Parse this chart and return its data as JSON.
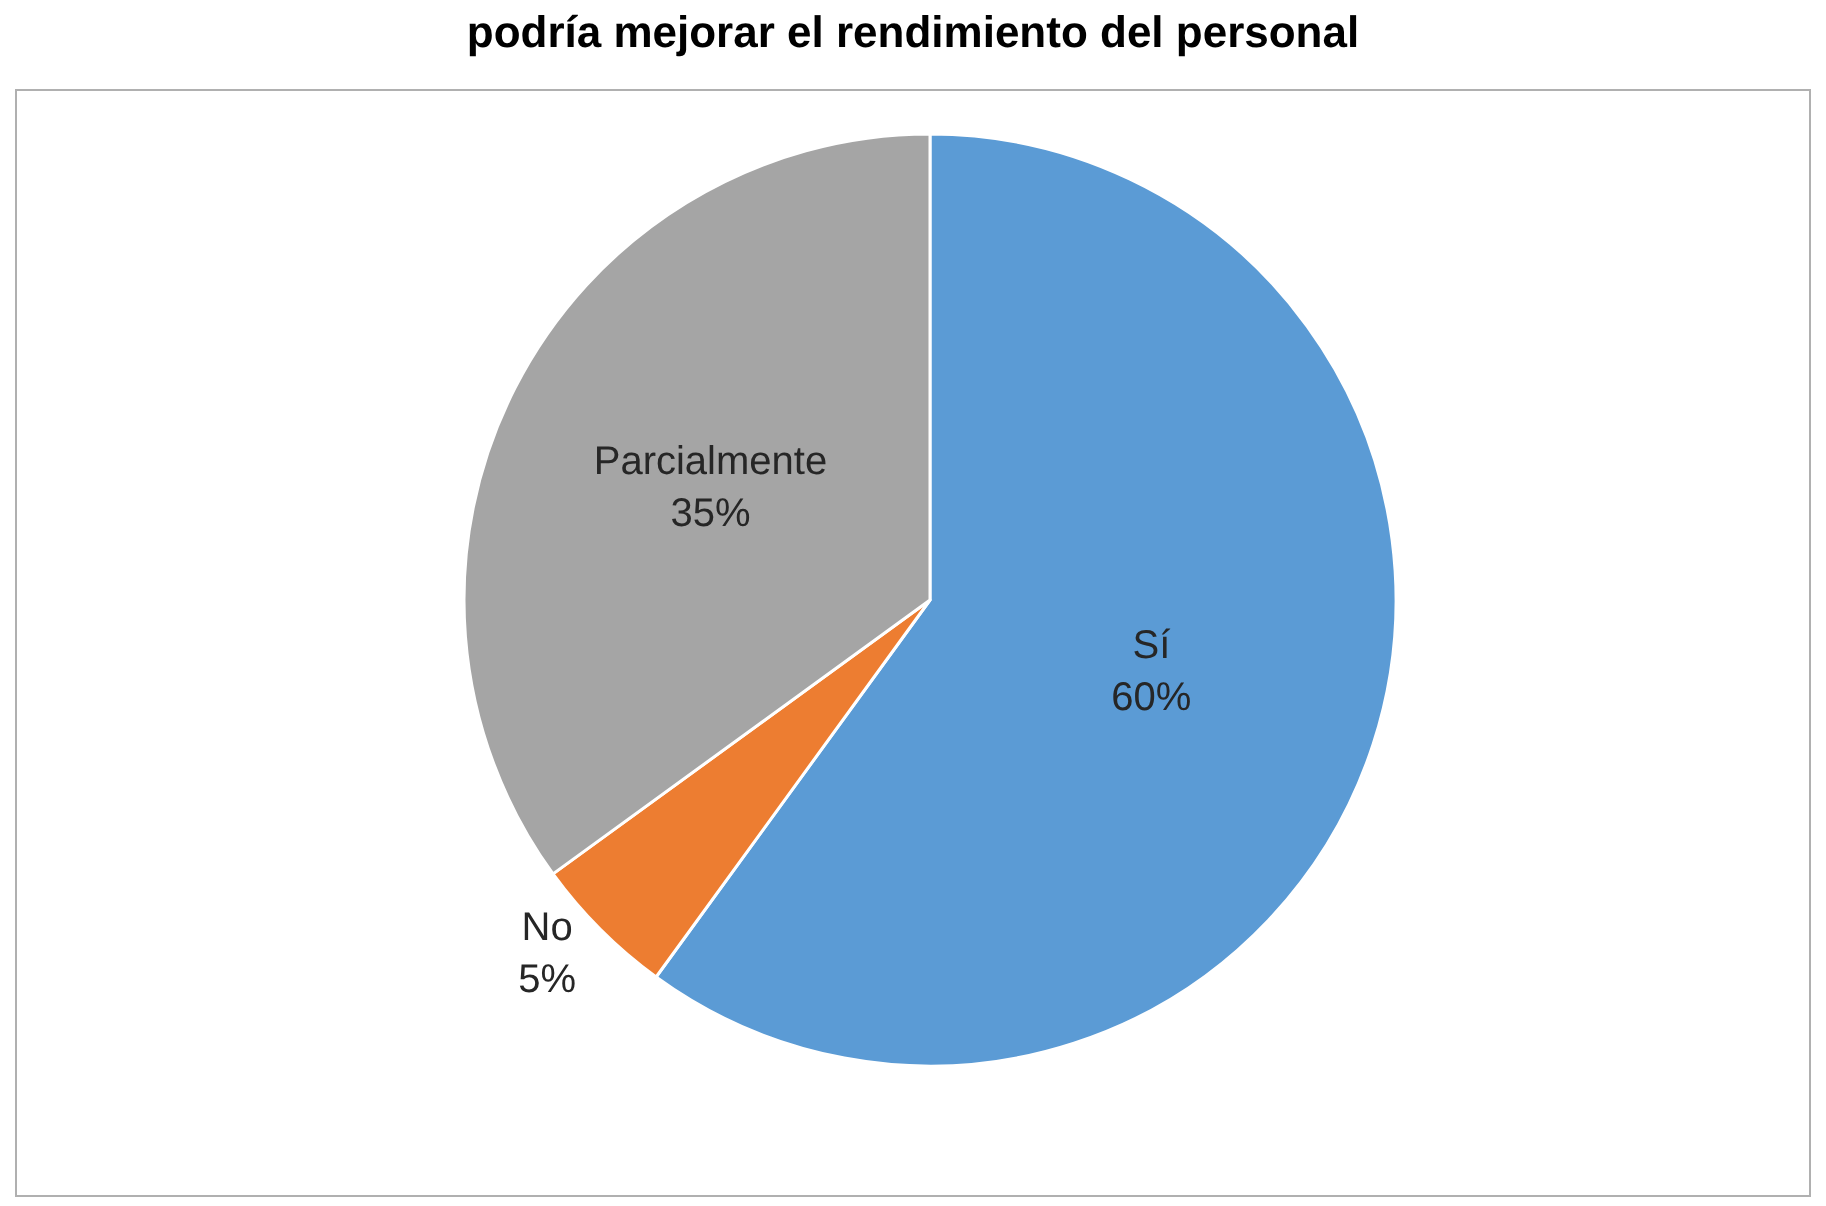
{
  "chart_data": {
    "type": "pie",
    "title": "podría mejorar el rendimiento del personal",
    "categories": [
      "Sí",
      "No",
      "Parcialmente"
    ],
    "values": [
      60,
      5,
      35
    ],
    "value_labels": [
      "60%",
      "5%",
      "35%"
    ],
    "colors": [
      "#5b9bd5",
      "#ed7d31",
      "#a5a5a5"
    ],
    "legend": false
  }
}
